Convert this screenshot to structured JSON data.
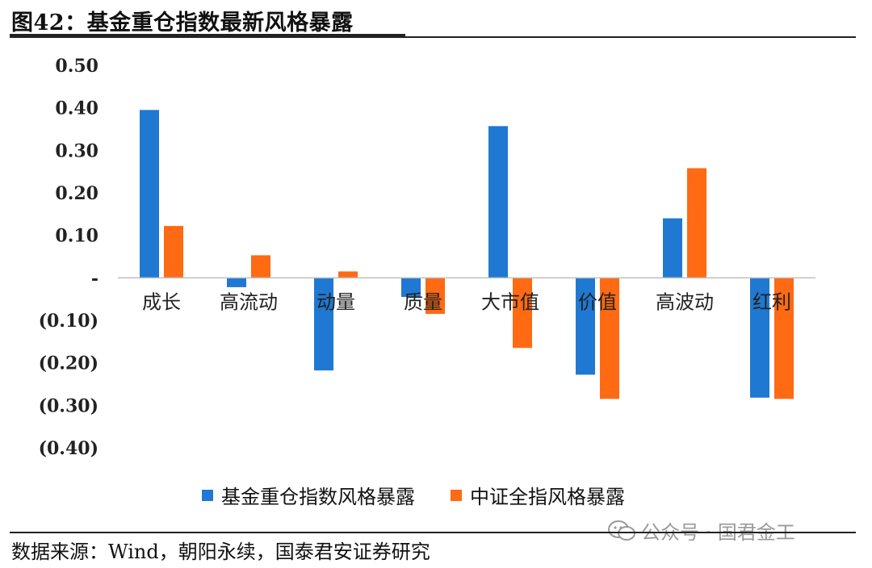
{
  "figure": {
    "title": "图42：基金重仓指数最新风格暴露",
    "source": "数据来源：Wind，朝阳永续，国泰君安证券研究",
    "watermark": "公众号 · 国君金工",
    "watermark_icon": "wechat-icon"
  },
  "chart_data": {
    "type": "bar",
    "categories": [
      "成长",
      "高流动",
      "动量",
      "质量",
      "大市值",
      "价值",
      "高波动",
      "红利"
    ],
    "series": [
      {
        "name": "基金重仓指数风格暴露",
        "color": "#1f78d1",
        "values": [
          0.395,
          -0.022,
          -0.218,
          -0.045,
          0.357,
          -0.228,
          0.14,
          -0.282
        ]
      },
      {
        "name": "中证全指风格暴露",
        "color": "#ff6a13",
        "values": [
          0.122,
          0.053,
          0.015,
          -0.085,
          -0.165,
          -0.285,
          0.258,
          -0.285
        ]
      }
    ],
    "ylim": [
      -0.4,
      0.5
    ],
    "yticks": [
      {
        "value": 0.5,
        "label": "0.50"
      },
      {
        "value": 0.4,
        "label": "0.40"
      },
      {
        "value": 0.3,
        "label": "0.30"
      },
      {
        "value": 0.2,
        "label": "0.20"
      },
      {
        "value": 0.1,
        "label": "0.10"
      },
      {
        "value": 0.0,
        "label": "-"
      },
      {
        "value": -0.1,
        "label": "(0.10)"
      },
      {
        "value": -0.2,
        "label": "(0.20)"
      },
      {
        "value": -0.3,
        "label": "(0.30)"
      },
      {
        "value": -0.4,
        "label": "(0.40)"
      }
    ],
    "grid": false,
    "legend_position": "bottom"
  }
}
